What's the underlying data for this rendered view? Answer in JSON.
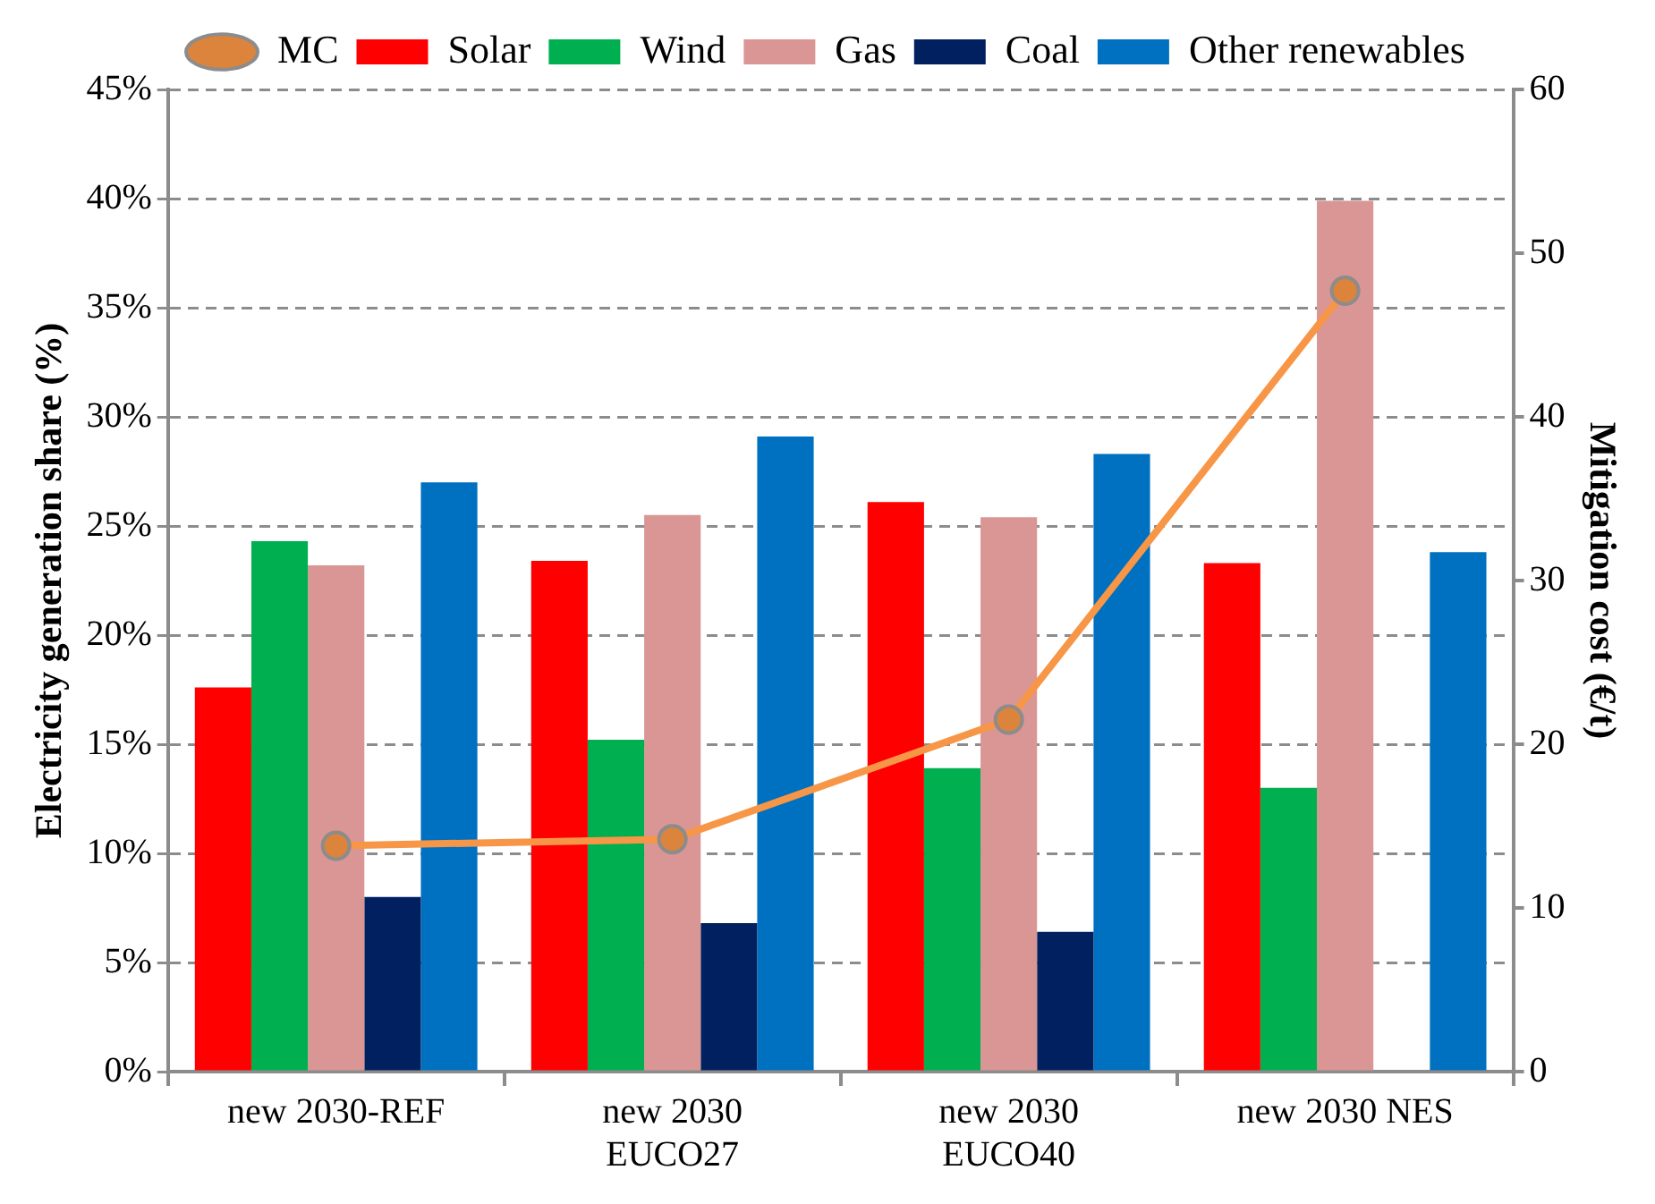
{
  "chart_data": {
    "type": "bar",
    "ylabel": "Electricity generation share (%)",
    "y2label": "Mitigation cost (€/t)",
    "categories": [
      "new 2030-REF",
      "new 2030 EUCO27",
      "new 2030 EUCO40",
      "new 2030 NES"
    ],
    "series": [
      {
        "name": "Solar",
        "color": "#ff0000",
        "values": [
          17.6,
          23.4,
          26.1,
          23.3
        ]
      },
      {
        "name": "Wind",
        "color": "#00b050",
        "values": [
          24.3,
          15.2,
          13.9,
          13.0
        ]
      },
      {
        "name": "Gas",
        "color": "#d99694",
        "values": [
          23.2,
          25.5,
          25.4,
          39.9
        ]
      },
      {
        "name": "Coal",
        "color": "#002060",
        "values": [
          8.0,
          6.8,
          6.4,
          0
        ]
      },
      {
        "name": "Other renewables",
        "color": "#0070c0",
        "values": [
          27.0,
          29.1,
          28.3,
          23.8
        ]
      },
      {
        "name": "MC",
        "type": "line",
        "axis": "y2",
        "color": "#f79646",
        "marker": "circle",
        "values": [
          13.8,
          14.2,
          21.5,
          47.7
        ]
      }
    ],
    "ylim": [
      0,
      45
    ],
    "yticks": [
      {
        "value": 0,
        "label": "0%"
      },
      {
        "value": 5,
        "label": "5%"
      },
      {
        "value": 10,
        "label": "10%"
      },
      {
        "value": 15,
        "label": "15%"
      },
      {
        "value": 20,
        "label": "20%"
      },
      {
        "value": 25,
        "label": "25%"
      },
      {
        "value": 30,
        "label": "30%"
      },
      {
        "value": 35,
        "label": "35%"
      },
      {
        "value": 40,
        "label": "40%"
      },
      {
        "value": 45,
        "label": "45%"
      }
    ],
    "y2lim": [
      0,
      60
    ],
    "y2ticks": [
      0,
      10,
      20,
      30,
      40,
      50,
      60
    ],
    "grid": "y",
    "legend": "top"
  }
}
